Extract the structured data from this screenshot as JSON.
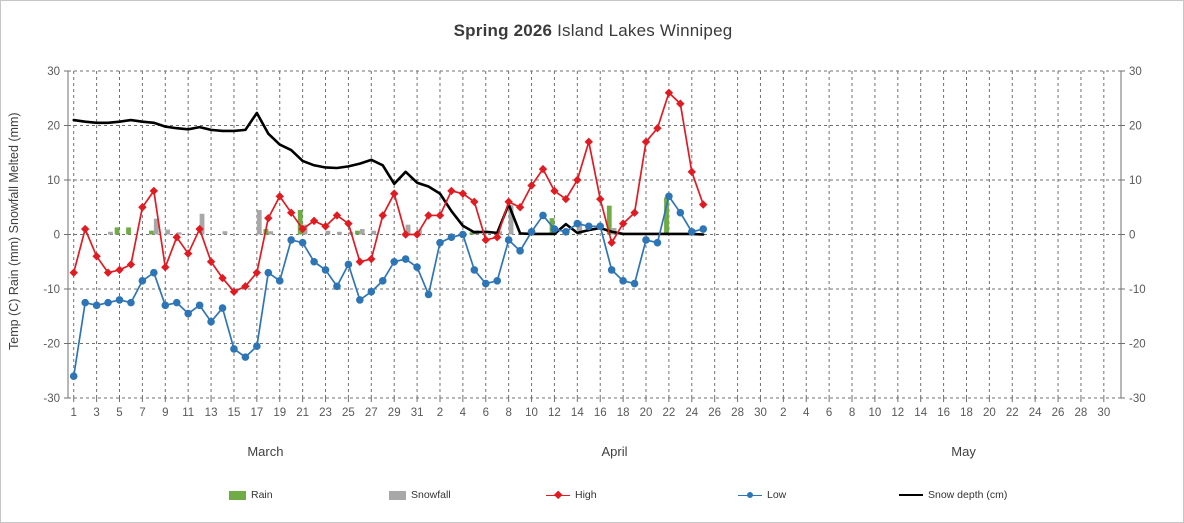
{
  "title": {
    "bold": "Spring  2026",
    "regular": " Island Lakes Winnipeg"
  },
  "y_axis_title": "Temp (C) Rain (mm) Snowfall Melted (mm)",
  "chart_data": {
    "type": "combo bar + line",
    "title": "Spring 2026 Island Lakes Winnipeg",
    "ylabel": "Temp (C) Rain (mm) Snowfall Melted (mm)",
    "ylim": [
      -30,
      30
    ],
    "y_ticks": [
      30,
      20,
      10,
      0,
      -10,
      -20,
      -30
    ],
    "grid": "dashed, every 10 units horizontal, every 2 days vertical",
    "legend_position": "bottom",
    "months": [
      {
        "name": "March",
        "days": 31
      },
      {
        "name": "April",
        "days": 30
      },
      {
        "name": "May",
        "days": 31
      }
    ],
    "x_note": "day index 0 = March 1; ticks labeled every 2 days; May has no data",
    "series": {
      "rain": {
        "label": "Rain",
        "type": "bar",
        "color": "#6fac46",
        "points": [
          [
            4,
            1.3
          ],
          [
            5,
            1.3
          ],
          [
            7,
            0.7
          ],
          [
            17,
            1.0
          ],
          [
            20,
            4.5
          ],
          [
            25,
            0.7
          ],
          [
            35,
            0.4
          ],
          [
            42,
            3.0
          ],
          [
            47,
            5.3
          ],
          [
            52,
            6.8
          ]
        ]
      },
      "snowfall": {
        "label": "Snowfall",
        "type": "bar",
        "color": "#a8a8a8",
        "points": [
          [
            3,
            0.5
          ],
          [
            7,
            2.9
          ],
          [
            8,
            0.9
          ],
          [
            9,
            0.4
          ],
          [
            11,
            3.8
          ],
          [
            13,
            0.6
          ],
          [
            16,
            4.5
          ],
          [
            17,
            0.6
          ],
          [
            20,
            1.8
          ],
          [
            22,
            0.7
          ],
          [
            23,
            0.5
          ],
          [
            24,
            0.5
          ],
          [
            25,
            1.0
          ],
          [
            26,
            0.7
          ],
          [
            29,
            1.8
          ],
          [
            30,
            0.9
          ],
          [
            35,
            0.8
          ],
          [
            37,
            0.6
          ],
          [
            38,
            5.4
          ],
          [
            44,
            2.4
          ],
          [
            47,
            1.2
          ]
        ]
      },
      "high": {
        "label": "High",
        "type": "line-diamond",
        "color": "#e11b22",
        "points": [
          [
            0,
            -7
          ],
          [
            1,
            1
          ],
          [
            2,
            -4
          ],
          [
            3,
            -7
          ],
          [
            4,
            -6.5
          ],
          [
            5,
            -5.5
          ],
          [
            6,
            5
          ],
          [
            7,
            8
          ],
          [
            8,
            -6
          ],
          [
            9,
            -0.5
          ],
          [
            10,
            -3.5
          ],
          [
            11,
            1
          ],
          [
            12,
            -5
          ],
          [
            13,
            -8
          ],
          [
            14,
            -10.5
          ],
          [
            15,
            -9.5
          ],
          [
            16,
            -7
          ],
          [
            17,
            3
          ],
          [
            18,
            7
          ],
          [
            19,
            4
          ],
          [
            20,
            1
          ],
          [
            21,
            2.5
          ],
          [
            22,
            1.5
          ],
          [
            23,
            3.5
          ],
          [
            24,
            2
          ],
          [
            25,
            -5
          ],
          [
            26,
            -4.5
          ],
          [
            27,
            3.5
          ],
          [
            28,
            7.5
          ],
          [
            29,
            0
          ],
          [
            30,
            0
          ],
          [
            31,
            3.5
          ],
          [
            32,
            3.5
          ],
          [
            33,
            8
          ],
          [
            34,
            7.5
          ],
          [
            35,
            6
          ],
          [
            36,
            -1
          ],
          [
            37,
            -0.5
          ],
          [
            38,
            6
          ],
          [
            39,
            5
          ],
          [
            40,
            9
          ],
          [
            41,
            12
          ],
          [
            42,
            8
          ],
          [
            43,
            6.5
          ],
          [
            44,
            10
          ],
          [
            45,
            17
          ],
          [
            46,
            6.5
          ],
          [
            47,
            -1.5
          ],
          [
            48,
            2
          ],
          [
            49,
            4
          ],
          [
            50,
            17
          ],
          [
            51,
            19.5
          ],
          [
            52,
            26
          ],
          [
            53,
            24
          ],
          [
            54,
            11.5
          ],
          [
            55,
            5.5
          ]
        ]
      },
      "low": {
        "label": "Low",
        "type": "line-circle",
        "color": "#2e75b6",
        "points": [
          [
            0,
            -26
          ],
          [
            1,
            -12.5
          ],
          [
            2,
            -13
          ],
          [
            3,
            -12.5
          ],
          [
            4,
            -12
          ],
          [
            5,
            -12.5
          ],
          [
            6,
            -8.5
          ],
          [
            7,
            -7
          ],
          [
            8,
            -13
          ],
          [
            9,
            -12.5
          ],
          [
            10,
            -14.5
          ],
          [
            11,
            -13
          ],
          [
            12,
            -16
          ],
          [
            13,
            -13.5
          ],
          [
            14,
            -21
          ],
          [
            15,
            -22.5
          ],
          [
            16,
            -20.5
          ],
          [
            17,
            -7
          ],
          [
            18,
            -8.5
          ],
          [
            19,
            -1
          ],
          [
            20,
            -1.5
          ],
          [
            21,
            -5
          ],
          [
            22,
            -6.5
          ],
          [
            23,
            -9.5
          ],
          [
            24,
            -5.5
          ],
          [
            25,
            -12
          ],
          [
            26,
            -10.5
          ],
          [
            27,
            -8.5
          ],
          [
            28,
            -5
          ],
          [
            29,
            -4.5
          ],
          [
            30,
            -6
          ],
          [
            31,
            -11
          ],
          [
            32,
            -1.5
          ],
          [
            33,
            -0.5
          ],
          [
            34,
            0
          ],
          [
            35,
            -6.5
          ],
          [
            36,
            -9
          ],
          [
            37,
            -8.5
          ],
          [
            38,
            -1
          ],
          [
            39,
            -3
          ],
          [
            40,
            0.5
          ],
          [
            41,
            3.5
          ],
          [
            42,
            1
          ],
          [
            43,
            0.5
          ],
          [
            44,
            2
          ],
          [
            45,
            1.5
          ],
          [
            46,
            1.5
          ],
          [
            47,
            -6.5
          ],
          [
            48,
            -8.5
          ],
          [
            49,
            -9
          ],
          [
            50,
            -1
          ],
          [
            51,
            -1.5
          ],
          [
            52,
            7
          ],
          [
            53,
            4
          ],
          [
            54,
            0.5
          ],
          [
            55,
            1
          ]
        ]
      },
      "snow_depth": {
        "label": "Snow depth (cm)",
        "type": "line",
        "color": "#000000",
        "points": [
          [
            0,
            21
          ],
          [
            1,
            20.7
          ],
          [
            2,
            20.5
          ],
          [
            3,
            20.5
          ],
          [
            4,
            20.7
          ],
          [
            5,
            21
          ],
          [
            6,
            20.7
          ],
          [
            7,
            20.5
          ],
          [
            8,
            19.8
          ],
          [
            9,
            19.5
          ],
          [
            10,
            19.3
          ],
          [
            11,
            19.7
          ],
          [
            12,
            19.2
          ],
          [
            13,
            19
          ],
          [
            14,
            19
          ],
          [
            15,
            19.2
          ],
          [
            16,
            22.3
          ],
          [
            17,
            18.5
          ],
          [
            18,
            16.5
          ],
          [
            19,
            15.5
          ],
          [
            20,
            13.5
          ],
          [
            21,
            12.7
          ],
          [
            22,
            12.3
          ],
          [
            23,
            12.2
          ],
          [
            24,
            12.5
          ],
          [
            25,
            13
          ],
          [
            26,
            13.7
          ],
          [
            27,
            12.7
          ],
          [
            28,
            9.3
          ],
          [
            29,
            11.5
          ],
          [
            30,
            9.5
          ],
          [
            31,
            8.8
          ],
          [
            32,
            7.5
          ],
          [
            33,
            4.3
          ],
          [
            34,
            1.6
          ],
          [
            35,
            0.4
          ],
          [
            36,
            0.5
          ],
          [
            37,
            0.3
          ],
          [
            38,
            5.5
          ],
          [
            39,
            0.2
          ],
          [
            40,
            0.1
          ],
          [
            41,
            0.1
          ],
          [
            42,
            0.1
          ],
          [
            43,
            1.9
          ],
          [
            44,
            0.3
          ],
          [
            45,
            0.8
          ],
          [
            46,
            1.2
          ],
          [
            47,
            0.5
          ],
          [
            48,
            0.1
          ],
          [
            49,
            0.1
          ],
          [
            50,
            0.1
          ],
          [
            51,
            0.1
          ],
          [
            52,
            0.1
          ],
          [
            53,
            0.1
          ],
          [
            54,
            0.1
          ],
          [
            55,
            0
          ]
        ]
      }
    },
    "colors": {
      "axis_text": "#595959",
      "grid": "#707070",
      "month_text": "#404040"
    }
  }
}
